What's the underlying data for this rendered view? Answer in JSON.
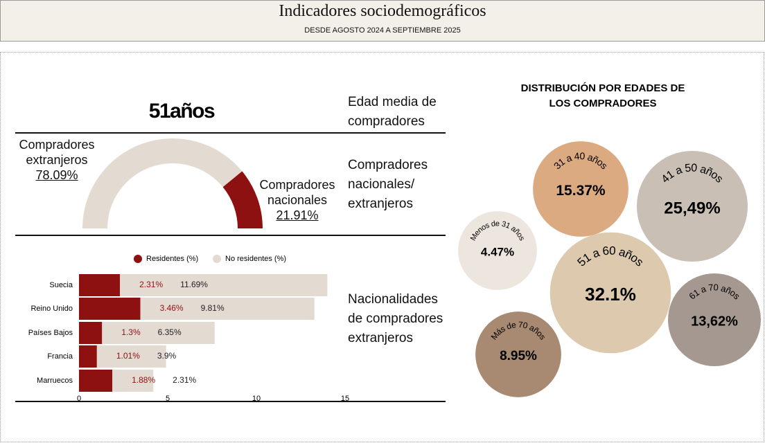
{
  "header": {
    "title": "Indicadores sociodemográficos",
    "subtitle": "DESDE AGOSTO 2024  A SEPTIEMBRE 2025"
  },
  "headline": "51años",
  "sections": [
    {
      "label": "Edad media de compradores"
    },
    {
      "label": "Compradores nacionales/ extranjeros"
    },
    {
      "label": "Nacionalidades de compradores extranjeros"
    }
  ],
  "chart_data": [
    {
      "type": "pie",
      "half": true,
      "categories": [
        "Compradores extranjeros",
        "Compradores nacionales"
      ],
      "values": [
        78.09,
        21.91
      ],
      "value_labels": [
        "78.09%",
        "21.91%"
      ],
      "colors": [
        "#e3dad2",
        "#8e1111"
      ]
    },
    {
      "type": "stacked-bar",
      "orientation": "horizontal",
      "categories": [
        "Suecia",
        "Reino Unido",
        "Países Bajos",
        "Francia",
        "Marruecos"
      ],
      "series": [
        {
          "name": "Residentes (%)",
          "color": "#8e1111",
          "label_color": "#8e1111",
          "values": [
            2.31,
            3.46,
            1.3,
            1.01,
            1.88
          ],
          "value_labels": [
            "2.31%",
            "3.46%",
            "1.3%",
            "1.01%",
            "1.88%"
          ]
        },
        {
          "name": "No residentes (%)",
          "color": "#e3dad2",
          "label_color": "#222222",
          "values": [
            11.69,
            9.81,
            6.35,
            3.9,
            2.31
          ],
          "value_labels": [
            "11.69%",
            "9.81%",
            "6.35%",
            "3.9%",
            "2.31%"
          ]
        }
      ],
      "xlim": [
        0,
        15
      ],
      "xticks": [
        0,
        5,
        10,
        15
      ],
      "grid": false
    },
    {
      "type": "bubble",
      "title": "DISTRIBUCIÓN POR EDADES DE LOS COMPRADORES",
      "categories": [
        "Menos de 31 años",
        "31 a 40 años",
        "41 a 50 años",
        "51 a 60 años",
        "61 a 70 años",
        "Más de 70 años"
      ],
      "values": [
        4.47,
        15.37,
        25.49,
        32.1,
        13.62,
        8.95
      ],
      "value_labels": [
        "4.47%",
        "15.37%",
        "25,49%",
        "32.1%",
        "13,62%",
        "8.95%"
      ],
      "colors": [
        "#ede6df",
        "#dcaa80",
        "#c9bfb5",
        "#dcc9ae",
        "#a59890",
        "#a88a72"
      ]
    }
  ]
}
